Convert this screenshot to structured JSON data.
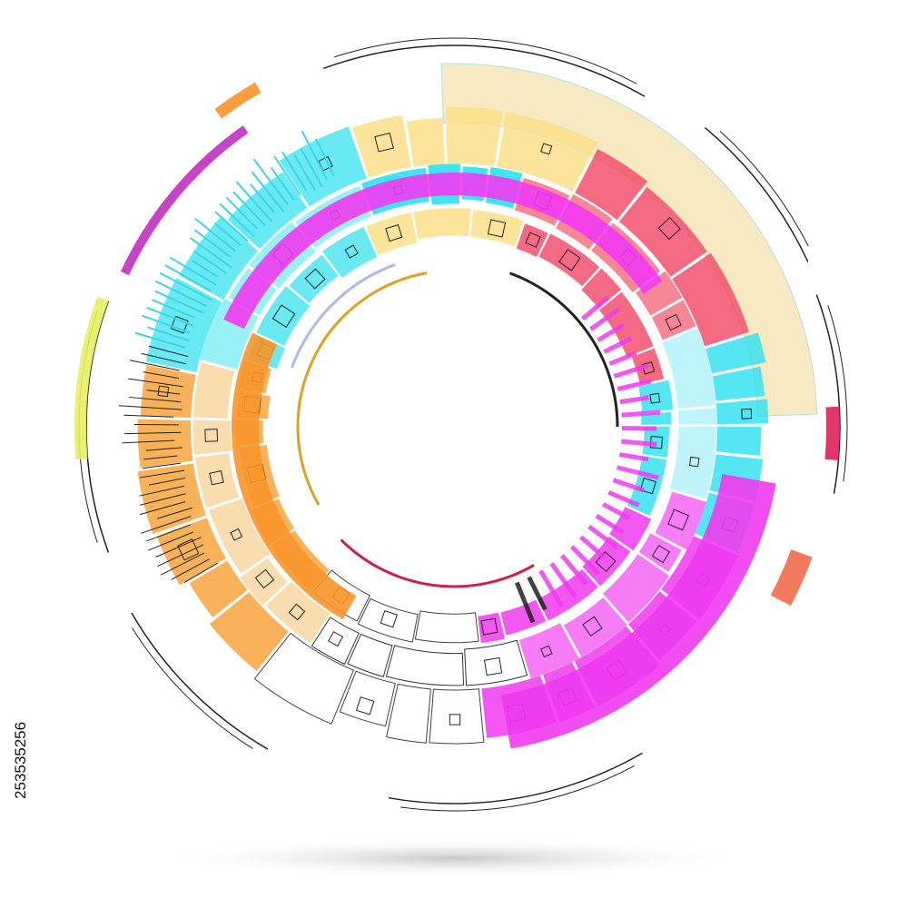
{
  "stock_id": "253535256"
}
